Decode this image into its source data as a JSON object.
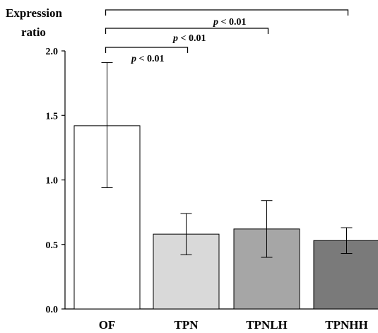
{
  "chart_data": {
    "type": "bar",
    "ylabel_line1": "Expression",
    "ylabel_line2": "ratio",
    "categories": [
      "OF",
      "TPN",
      "TPNLH",
      "TPNHH"
    ],
    "values": [
      1.42,
      0.58,
      0.62,
      0.53
    ],
    "error_low": [
      0.94,
      0.42,
      0.4,
      0.43
    ],
    "error_high": [
      1.91,
      0.74,
      0.84,
      0.63
    ],
    "bar_colors": [
      "#ffffff",
      "#d9d9d9",
      "#a6a6a6",
      "#7a7a7a"
    ],
    "ylim": [
      0,
      2.0
    ],
    "yticks": [
      "0.0",
      "0.5",
      "1.0",
      "1.5",
      "2.0"
    ],
    "significance": [
      {
        "from": 0,
        "to": 1,
        "p_symbol": "p",
        "text": " < 0.01"
      },
      {
        "from": 0,
        "to": 2,
        "p_symbol": "p",
        "text": " < 0.01"
      },
      {
        "from": 0,
        "to": 3,
        "p_symbol": "p",
        "text": " < 0.01"
      }
    ]
  }
}
